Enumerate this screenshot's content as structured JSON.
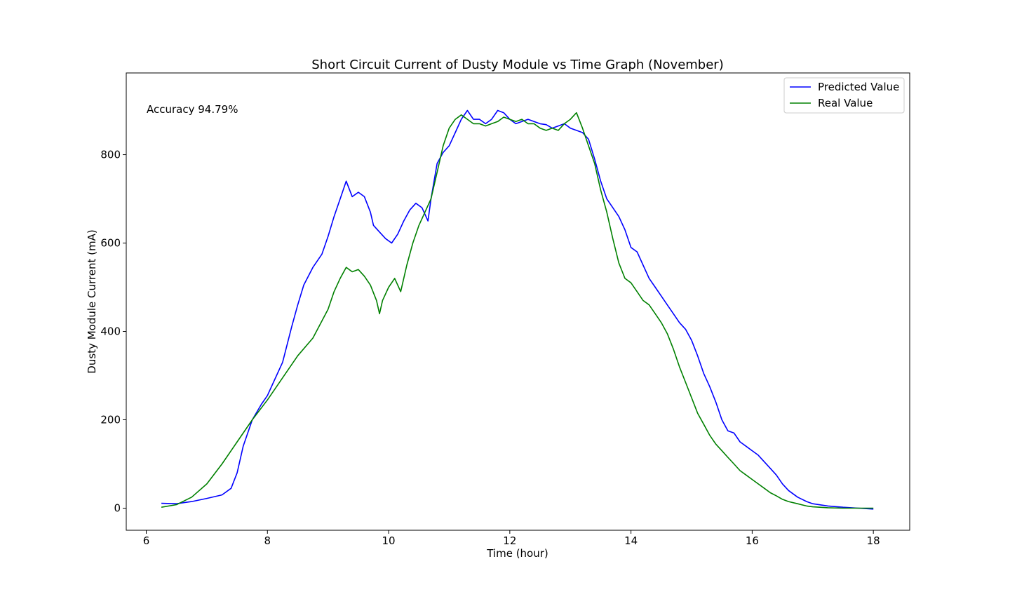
{
  "chart_data": {
    "type": "line",
    "title": "Short Circuit Current of Dusty Module vs Time Graph (November)",
    "xlabel": "Time (hour)",
    "ylabel": "Dusty Module Current (mA)",
    "xlim": [
      5.67,
      18.6
    ],
    "ylim": [
      -50,
      985
    ],
    "xticks": [
      6,
      8,
      10,
      12,
      14,
      16,
      18
    ],
    "yticks": [
      0,
      200,
      400,
      600,
      800
    ],
    "grid": false,
    "legend_position": "top-right",
    "annotation": "Accuracy 94.79%",
    "series": [
      {
        "name": "Predicted Value",
        "color": "#0000ff",
        "x": [
          6.25,
          6.5,
          6.75,
          7.0,
          7.25,
          7.4,
          7.5,
          7.6,
          7.75,
          7.9,
          8.0,
          8.1,
          8.25,
          8.4,
          8.5,
          8.6,
          8.75,
          8.9,
          9.0,
          9.1,
          9.2,
          9.3,
          9.4,
          9.5,
          9.6,
          9.7,
          9.75,
          9.85,
          9.95,
          10.05,
          10.15,
          10.25,
          10.35,
          10.45,
          10.55,
          10.65,
          10.7,
          10.8,
          10.9,
          11.0,
          11.1,
          11.2,
          11.3,
          11.4,
          11.5,
          11.6,
          11.7,
          11.8,
          11.9,
          12.0,
          12.1,
          12.2,
          12.3,
          12.4,
          12.5,
          12.6,
          12.7,
          12.8,
          12.9,
          13.0,
          13.1,
          13.2,
          13.3,
          13.4,
          13.5,
          13.6,
          13.7,
          13.8,
          13.9,
          14.0,
          14.1,
          14.2,
          14.3,
          14.4,
          14.5,
          14.6,
          14.7,
          14.8,
          14.9,
          15.0,
          15.1,
          15.2,
          15.3,
          15.4,
          15.5,
          15.6,
          15.7,
          15.8,
          15.9,
          16.0,
          16.1,
          16.2,
          16.3,
          16.4,
          16.5,
          16.6,
          16.75,
          16.9,
          17.0,
          17.25,
          17.5,
          17.75,
          18.0
        ],
        "y": [
          11,
          10,
          15,
          22,
          30,
          45,
          80,
          140,
          200,
          235,
          255,
          285,
          330,
          410,
          460,
          505,
          545,
          575,
          615,
          660,
          700,
          740,
          705,
          715,
          705,
          670,
          640,
          625,
          610,
          600,
          620,
          650,
          675,
          690,
          680,
          650,
          700,
          780,
          805,
          820,
          850,
          880,
          900,
          880,
          880,
          870,
          880,
          900,
          895,
          880,
          870,
          875,
          880,
          875,
          870,
          868,
          860,
          865,
          870,
          860,
          855,
          850,
          835,
          790,
          740,
          700,
          680,
          660,
          630,
          590,
          580,
          550,
          520,
          500,
          480,
          460,
          440,
          420,
          405,
          380,
          345,
          305,
          275,
          240,
          200,
          175,
          170,
          150,
          140,
          130,
          120,
          105,
          90,
          75,
          55,
          40,
          25,
          15,
          10,
          5,
          2,
          0,
          -2
        ]
      },
      {
        "name": "Real Value",
        "color": "#008000",
        "x": [
          6.25,
          6.5,
          6.75,
          7.0,
          7.25,
          7.5,
          7.75,
          8.0,
          8.25,
          8.5,
          8.75,
          9.0,
          9.1,
          9.2,
          9.3,
          9.4,
          9.5,
          9.6,
          9.7,
          9.8,
          9.85,
          9.9,
          10.0,
          10.1,
          10.2,
          10.3,
          10.4,
          10.5,
          10.6,
          10.7,
          10.8,
          10.9,
          11.0,
          11.1,
          11.2,
          11.3,
          11.4,
          11.5,
          11.6,
          11.7,
          11.8,
          11.9,
          12.0,
          12.1,
          12.2,
          12.3,
          12.4,
          12.5,
          12.6,
          12.7,
          12.8,
          12.9,
          13.0,
          13.1,
          13.2,
          13.3,
          13.4,
          13.5,
          13.6,
          13.7,
          13.8,
          13.9,
          14.0,
          14.1,
          14.2,
          14.3,
          14.4,
          14.5,
          14.6,
          14.7,
          14.8,
          14.9,
          15.0,
          15.1,
          15.2,
          15.3,
          15.4,
          15.5,
          15.6,
          15.7,
          15.8,
          15.9,
          16.0,
          16.1,
          16.2,
          16.3,
          16.4,
          16.5,
          16.6,
          16.75,
          16.9,
          17.0,
          17.25,
          17.5,
          17.75,
          18.0
        ],
        "y": [
          2,
          8,
          25,
          55,
          100,
          150,
          200,
          245,
          295,
          345,
          385,
          450,
          490,
          520,
          545,
          535,
          540,
          525,
          505,
          470,
          440,
          470,
          500,
          520,
          490,
          550,
          600,
          640,
          670,
          700,
          760,
          820,
          860,
          880,
          890,
          880,
          870,
          870,
          865,
          870,
          875,
          885,
          880,
          875,
          880,
          870,
          870,
          860,
          855,
          860,
          855,
          870,
          880,
          895,
          860,
          820,
          780,
          720,
          670,
          610,
          555,
          520,
          510,
          490,
          470,
          460,
          440,
          420,
          395,
          360,
          320,
          285,
          250,
          215,
          190,
          165,
          145,
          130,
          115,
          100,
          85,
          75,
          65,
          55,
          45,
          35,
          28,
          20,
          15,
          10,
          5,
          3,
          1,
          0,
          0,
          0
        ]
      }
    ]
  }
}
